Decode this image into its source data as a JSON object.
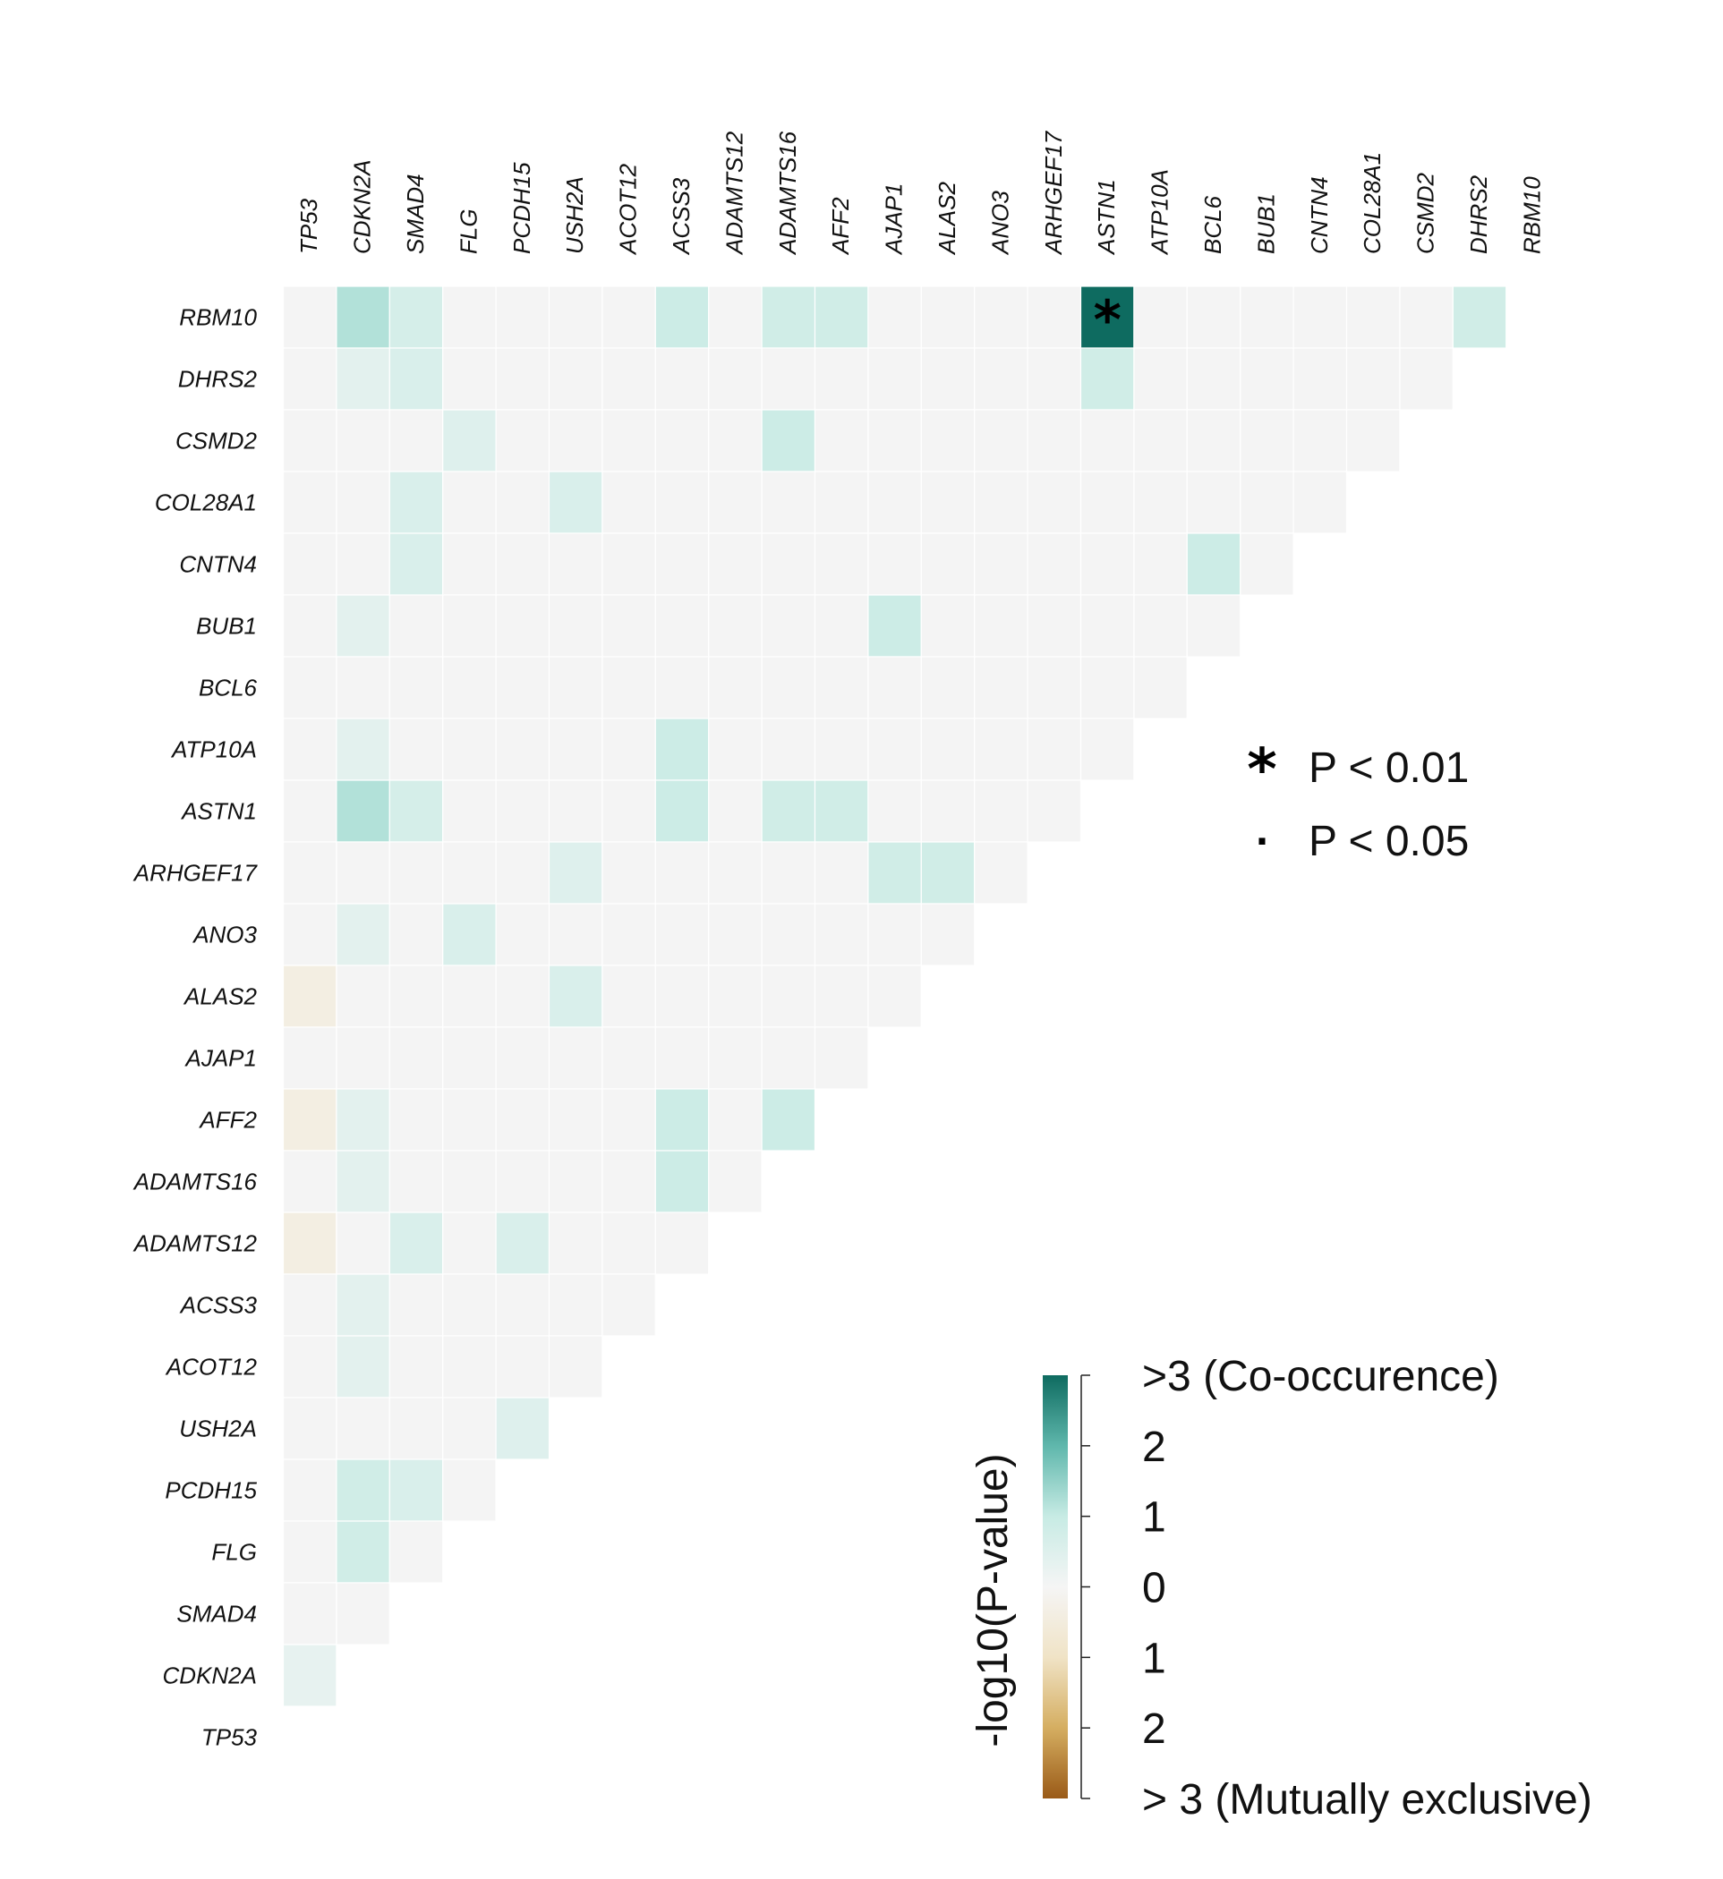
{
  "chart_data": {
    "type": "heatmap",
    "genes": [
      "TP53",
      "CDKN2A",
      "SMAD4",
      "FLG",
      "PCDH15",
      "USH2A",
      "ACOT12",
      "ACSS3",
      "ADAMTS12",
      "ADAMTS16",
      "AFF2",
      "AJAP1",
      "ALAS2",
      "ANO3",
      "ARHGEF17",
      "ASTN1",
      "ATP10A",
      "BCL6",
      "BUB1",
      "CNTN4",
      "COL28A1",
      "CSMD2",
      "DHRS2",
      "RBM10"
    ],
    "row_order": [
      "RBM10",
      "DHRS2",
      "CSMD2",
      "COL28A1",
      "CNTN4",
      "BUB1",
      "BCL6",
      "ATP10A",
      "ASTN1",
      "ARHGEF17",
      "ANO3",
      "ALAS2",
      "AJAP1",
      "AFF2",
      "ADAMTS16",
      "ADAMTS12",
      "ACSS3",
      "ACOT12",
      "USH2A",
      "PCDH15",
      "FLG",
      "SMAD4",
      "CDKN2A",
      "TP53"
    ],
    "matrix": [
      [
        0,
        1.2,
        0.7,
        0,
        0,
        0,
        0,
        0.9,
        0,
        0.8,
        0.8,
        0,
        0,
        0,
        0,
        3.0,
        0,
        0,
        0,
        0,
        0,
        0,
        0.8
      ],
      [
        0,
        0.4,
        0.6,
        0,
        0,
        0,
        0,
        0,
        0,
        0,
        0,
        0,
        0,
        0,
        0,
        0.8,
        0,
        0,
        0,
        0,
        0,
        0
      ],
      [
        0,
        0,
        0,
        0.5,
        0,
        0,
        0,
        0,
        0,
        0.9,
        0,
        0,
        0,
        0,
        0,
        0,
        0,
        0,
        0,
        0,
        0
      ],
      [
        0,
        0,
        0.6,
        0,
        0,
        0.6,
        0,
        0,
        0,
        0,
        0,
        0,
        0,
        0,
        0,
        0,
        0,
        0,
        0,
        0
      ],
      [
        0,
        0,
        0.6,
        0,
        0,
        0,
        0,
        0,
        0,
        0,
        0,
        0,
        0,
        0,
        0,
        0,
        0,
        0.9,
        0
      ],
      [
        0,
        0.4,
        0,
        0,
        0,
        0,
        0,
        0,
        0,
        0,
        0,
        0.9,
        0,
        0,
        0,
        0,
        0,
        0
      ],
      [
        0,
        0,
        0,
        0,
        0,
        0,
        0,
        0,
        0,
        0,
        0,
        0,
        0,
        0,
        0,
        0,
        0
      ],
      [
        0,
        0.4,
        0,
        0,
        0,
        0,
        0,
        0.9,
        0,
        0,
        0,
        0,
        0,
        0,
        0,
        0
      ],
      [
        0,
        1.2,
        0.7,
        0,
        0,
        0,
        0,
        0.9,
        0,
        0.8,
        0.8,
        0,
        0,
        0,
        0
      ],
      [
        0,
        0,
        0,
        0,
        0,
        0.5,
        0,
        0,
        0,
        0,
        0,
        0.8,
        0.8,
        0
      ],
      [
        0,
        0.4,
        0,
        0.6,
        0,
        0,
        0,
        0,
        0,
        0,
        0,
        0,
        0
      ],
      [
        -0.4,
        0,
        0,
        0,
        0,
        0.6,
        0,
        0,
        0,
        0,
        0,
        0
      ],
      [
        0,
        0,
        0,
        0,
        0,
        0,
        0,
        0,
        0,
        0,
        0
      ],
      [
        -0.4,
        0.4,
        0,
        0,
        0,
        0,
        0,
        0.9,
        0,
        0.9
      ],
      [
        0,
        0.4,
        0,
        0,
        0,
        0,
        0,
        0.9,
        0
      ],
      [
        -0.4,
        0,
        0.6,
        0,
        0.6,
        0,
        0,
        0
      ],
      [
        0,
        0.4,
        0,
        0,
        0,
        0,
        0
      ],
      [
        0,
        0.4,
        0,
        0,
        0,
        0
      ],
      [
        0,
        0,
        0,
        0,
        0.5
      ],
      [
        0,
        0.8,
        0.6,
        0
      ],
      [
        0,
        0.8,
        0
      ],
      [
        0,
        0
      ],
      [
        0.3
      ],
      []
    ],
    "significance": [
      {
        "row": "RBM10",
        "col": "ASTN1",
        "mark": "*"
      }
    ],
    "significance_legend": [
      {
        "symbol": "*",
        "label": "P < 0.01"
      },
      {
        "symbol": "·",
        "label": "P < 0.05"
      }
    ],
    "colorbar": {
      "title": "-log10(P-value)",
      "range": [
        -3,
        3
      ],
      "ticks": [
        3,
        2,
        1,
        0,
        -1,
        -2,
        -3
      ],
      "tick_labels": [
        ">3 (Co-occurence)",
        "2",
        "1",
        "0",
        "1",
        "2",
        "> 3 (Mutually exclusive)"
      ],
      "colors": [
        "#9a5a17",
        "#d5ae61",
        "#f0e3c6",
        "#f5f5f5",
        "#c7ebe4",
        "#5fb7ac",
        "#0e6b60"
      ]
    },
    "empty_color": "#f4f4f4"
  }
}
